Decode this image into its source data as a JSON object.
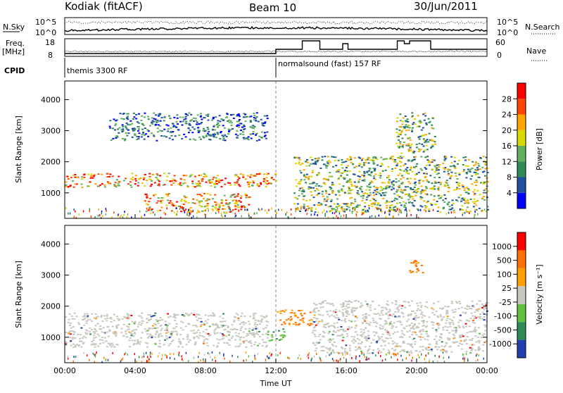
{
  "header": {
    "station": "Kodiak (fitACF)",
    "beam": "Beam 10",
    "date": "30/Jun/2011"
  },
  "top_panels": {
    "nsky_label": "N.Sky",
    "nsearch_label": "N.Search",
    "nsky_ticks": [
      "10^5",
      "10^0"
    ],
    "nsky_ticks_right": [
      "10^5",
      "10^0"
    ],
    "freq_label_line1": "Freq.",
    "freq_label_line2": "[MHz]",
    "freq_ticks": [
      "18",
      "8"
    ],
    "nave_label": "Nave",
    "nave_ticks": [
      "60",
      "0"
    ],
    "cpid_label": "CPID",
    "cpid_modes": [
      {
        "label": "themis 3300 RF",
        "start_hour": 0
      },
      {
        "label": "normalsound (fast) 157 RF",
        "start_hour": 12
      }
    ]
  },
  "chart_data": [
    {
      "type": "heatmap",
      "name": "power",
      "ylabel": "Slant Range [km]",
      "xlim": [
        0,
        24
      ],
      "ylim": [
        180,
        4600
      ],
      "yticks": [
        "4000",
        "3000",
        "2000",
        "1000"
      ],
      "colorbar": {
        "label": "Power [dB]",
        "ticks": [
          "28",
          "24",
          "20",
          "16",
          "12",
          "8",
          "4"
        ],
        "colors": [
          "#0000ff",
          "#2050a0",
          "#2e8b57",
          "#60b060",
          "#d9d900",
          "#ffa500",
          "#ff4500",
          "#ff0000"
        ]
      },
      "features": [
        {
          "t0": 0.0,
          "t1": 12.0,
          "r0": 1200,
          "r1": 1650,
          "level": "strong"
        },
        {
          "t0": 4.5,
          "t1": 10.5,
          "r0": 400,
          "r1": 1000,
          "level": "strong"
        },
        {
          "t0": 2.5,
          "t1": 11.5,
          "r0": 2700,
          "r1": 3600,
          "level": "weak"
        },
        {
          "t0": 13.0,
          "t1": 24.0,
          "r0": 400,
          "r1": 2200,
          "level": "medium"
        },
        {
          "t0": 18.8,
          "t1": 21.0,
          "r0": 2300,
          "r1": 3600,
          "level": "medium"
        }
      ]
    },
    {
      "type": "heatmap",
      "name": "velocity",
      "xlabel": "Time UT",
      "ylabel": "Slant Range [km]",
      "xlim": [
        0,
        24
      ],
      "ylim": [
        180,
        4600
      ],
      "xticks": [
        "00:00",
        "04:00",
        "08:00",
        "12:00",
        "16:00",
        "20:00",
        "00:00"
      ],
      "yticks": [
        "4000",
        "3000",
        "2000",
        "1000"
      ],
      "colorbar": {
        "label": "Velocity [m s⁻¹]",
        "ticks": [
          "1000",
          "500",
          "100",
          "25",
          "-25",
          "-100",
          "-500",
          "-1000"
        ],
        "colors": [
          "#2040b0",
          "#2e8b57",
          "#60c040",
          "#c8c8c0",
          "#ffa000",
          "#ff7000",
          "#ff0000"
        ]
      },
      "features": [
        {
          "t0": 0.0,
          "t1": 11.5,
          "r0": 700,
          "r1": 1800,
          "level": "grey"
        },
        {
          "t0": 11.5,
          "t1": 12.5,
          "r0": 900,
          "r1": 1300,
          "level": "green"
        },
        {
          "t0": 12.0,
          "t1": 14.0,
          "r0": 1400,
          "r1": 1900,
          "level": "orange"
        },
        {
          "t0": 14.0,
          "t1": 24.0,
          "r0": 500,
          "r1": 2200,
          "level": "grey"
        },
        {
          "t0": 19.5,
          "t1": 20.5,
          "r0": 3100,
          "r1": 3500,
          "level": "orange"
        }
      ]
    }
  ]
}
